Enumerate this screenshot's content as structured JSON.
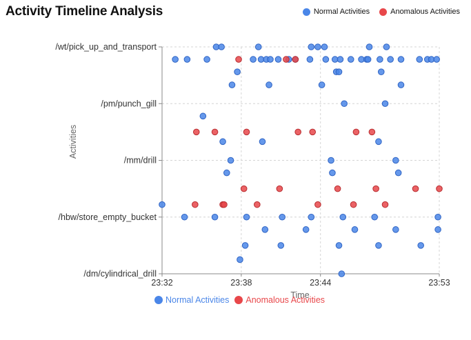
{
  "title": "Activity Timeline Analysis",
  "legend": [
    {
      "label": "Normal Activities",
      "color": "#4a86e8"
    },
    {
      "label": "Anomalous Activities",
      "color": "#e8474a"
    }
  ],
  "chart_data": {
    "type": "scatter",
    "xlabel": "Time",
    "ylabel": "Activities",
    "x_ticks": [
      "23:32",
      "23:38",
      "23:44",
      "23:53"
    ],
    "x_range": [
      "23:32",
      "23:53"
    ],
    "y_ticks": [
      "/wt/pick_up_and_transport",
      "/pm/punch_gill",
      "/mm/drill",
      "/hbw/store_empty_bucket",
      "/dm/cylindrical_drill"
    ],
    "grid": true,
    "legend_placement": "top-right",
    "series": [
      {
        "name": "Normal Activities",
        "color": "#4a86e8",
        "points": [
          [
            "23:36.1",
            4.0
          ],
          [
            "23:36.5",
            4.0
          ],
          [
            "23:39.3",
            4.0
          ],
          [
            "23:43.3",
            4.0
          ],
          [
            "23:43.8",
            4.0
          ],
          [
            "23:44.3",
            4.0
          ],
          [
            "23:47.7",
            4.0
          ],
          [
            "23:49.0",
            4.0
          ],
          [
            "23:33.0",
            3.78
          ],
          [
            "23:33.9",
            3.78
          ],
          [
            "23:35.4",
            3.78
          ],
          [
            "23:38.9",
            3.78
          ],
          [
            "23:39.5",
            3.78
          ],
          [
            "23:39.9",
            3.78
          ],
          [
            "23:40.2",
            3.78
          ],
          [
            "23:40.8",
            3.78
          ],
          [
            "23:41.6",
            3.78
          ],
          [
            "23:42.1",
            3.78
          ],
          [
            "23:43.2",
            3.78
          ],
          [
            "23:44.4",
            3.78
          ],
          [
            "23:45.1",
            3.78
          ],
          [
            "23:45.5",
            3.78
          ],
          [
            "23:46.3",
            3.78
          ],
          [
            "23:47.1",
            3.78
          ],
          [
            "23:47.5",
            3.78
          ],
          [
            "23:47.6",
            3.78
          ],
          [
            "23:48.5",
            3.78
          ],
          [
            "23:49.3",
            3.78
          ],
          [
            "23:50.1",
            3.78
          ],
          [
            "23:51.5",
            3.78
          ],
          [
            "23:52.1",
            3.78
          ],
          [
            "23:52.4",
            3.78
          ],
          [
            "23:52.8",
            3.78
          ],
          [
            "23:37.7",
            3.56
          ],
          [
            "23:45.2",
            3.56
          ],
          [
            "23:45.4",
            3.56
          ],
          [
            "23:48.6",
            3.56
          ],
          [
            "23:37.3",
            3.33
          ],
          [
            "23:40.1",
            3.33
          ],
          [
            "23:44.1",
            3.33
          ],
          [
            "23:50.1",
            3.33
          ],
          [
            "23:45.8",
            3.0
          ],
          [
            "23:48.9",
            3.0
          ],
          [
            "23:35.1",
            2.78
          ],
          [
            "23:36.6",
            2.33
          ],
          [
            "23:39.6",
            2.33
          ],
          [
            "23:48.4",
            2.33
          ],
          [
            "23:37.2",
            2.0
          ],
          [
            "23:44.8",
            2.0
          ],
          [
            "23:49.7",
            2.0
          ],
          [
            "23:36.9",
            1.78
          ],
          [
            "23:44.9",
            1.78
          ],
          [
            "23:49.9",
            1.78
          ],
          [
            "23:32.0",
            1.22
          ],
          [
            "23:33.7",
            1.0
          ],
          [
            "23:36.0",
            1.0
          ],
          [
            "23:38.4",
            1.0
          ],
          [
            "23:41.1",
            1.0
          ],
          [
            "23:43.3",
            1.0
          ],
          [
            "23:45.7",
            1.0
          ],
          [
            "23:48.1",
            1.0
          ],
          [
            "23:52.9",
            1.0
          ],
          [
            "23:39.8",
            0.78
          ],
          [
            "23:42.9",
            0.78
          ],
          [
            "23:46.6",
            0.78
          ],
          [
            "23:49.7",
            0.78
          ],
          [
            "23:52.9",
            0.78
          ],
          [
            "23:38.3",
            0.5
          ],
          [
            "23:41.0",
            0.5
          ],
          [
            "23:45.4",
            0.5
          ],
          [
            "23:48.4",
            0.5
          ],
          [
            "23:51.6",
            0.5
          ],
          [
            "23:37.9",
            0.25
          ],
          [
            "23:45.6",
            0.0
          ]
        ]
      },
      {
        "name": "Anomalous Activities",
        "color": "#e8474a",
        "points": [
          [
            "23:37.8",
            3.78
          ],
          [
            "23:41.4",
            3.78
          ],
          [
            "23:42.1",
            3.78
          ],
          [
            "23:34.6",
            2.5
          ],
          [
            "23:36.0",
            2.5
          ],
          [
            "23:38.4",
            2.5
          ],
          [
            "23:42.3",
            2.5
          ],
          [
            "23:43.4",
            2.5
          ],
          [
            "23:46.7",
            2.5
          ],
          [
            "23:47.9",
            2.5
          ],
          [
            "23:38.2",
            1.5
          ],
          [
            "23:40.9",
            1.5
          ],
          [
            "23:45.3",
            1.5
          ],
          [
            "23:48.2",
            1.5
          ],
          [
            "23:51.2",
            1.5
          ],
          [
            "23:53.0",
            1.5
          ],
          [
            "23:34.5",
            1.22
          ],
          [
            "23:36.6",
            1.22
          ],
          [
            "23:36.7",
            1.22
          ],
          [
            "23:39.2",
            1.22
          ],
          [
            "23:43.8",
            1.22
          ],
          [
            "23:46.5",
            1.22
          ],
          [
            "23:48.9",
            1.22
          ]
        ]
      }
    ]
  }
}
